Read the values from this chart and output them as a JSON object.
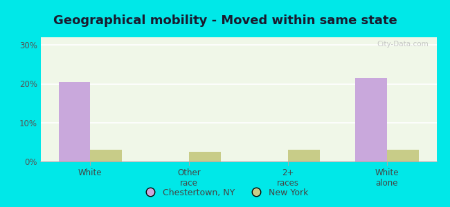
{
  "title": "Geographical mobility - Moved within same state",
  "categories": [
    "White",
    "Other\nrace",
    "2+\nraces",
    "White\nalone"
  ],
  "chestertown_values": [
    20.5,
    0.0,
    0.0,
    21.5
  ],
  "newyork_values": [
    3.0,
    2.5,
    3.0,
    3.0
  ],
  "chestertown_color": "#c9a8dc",
  "newyork_color": "#c8cc88",
  "ylim": [
    0,
    32
  ],
  "yticks": [
    0,
    10,
    20,
    30
  ],
  "ytick_labels": [
    "0%",
    "10%",
    "20%",
    "30%"
  ],
  "background_color": "#f0f7e8",
  "outer_background": "#00e8e8",
  "legend_chestertown": "Chestertown, NY",
  "legend_newyork": "New York",
  "bar_width": 0.32,
  "title_fontsize": 13,
  "watermark": "City-Data.com"
}
